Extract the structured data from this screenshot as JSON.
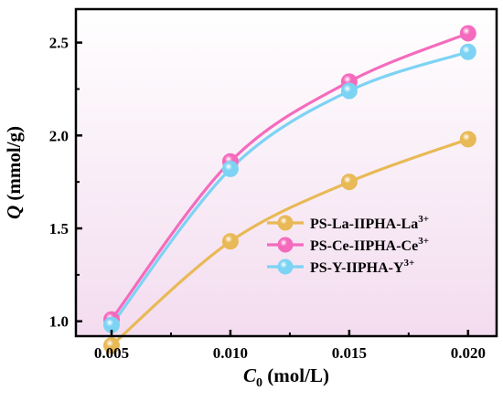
{
  "chart_data": {
    "type": "line",
    "title": "",
    "xlabel": {
      "main": "C",
      "sub": "0",
      "rest": " (mol/L)"
    },
    "ylabel": {
      "main": "Q",
      "rest": " (mmol/g)"
    },
    "x": [
      0.005,
      0.01,
      0.015,
      0.02
    ],
    "xticks": [
      "0.005",
      "0.010",
      "0.015",
      "0.020"
    ],
    "yticks": [
      "1.0",
      "1.5",
      "2.0",
      "2.5"
    ],
    "xlim": [
      0.0035,
      0.0212
    ],
    "ylim": [
      0.92,
      2.68
    ],
    "background_gradient": [
      "#ffffff",
      "#f3dcef"
    ],
    "legend_position": "center-right",
    "series": [
      {
        "name": "PS-La-IIPHA-La",
        "sup": "3+",
        "color": "#e8b956",
        "values": [
          0.87,
          1.43,
          1.75,
          1.98
        ]
      },
      {
        "name": "PS-Ce-IIPHA-Ce",
        "sup": "3+",
        "color": "#f46bbd",
        "values": [
          1.01,
          1.86,
          2.29,
          2.55
        ]
      },
      {
        "name": "PS-Y-IIPHA-Y",
        "sup": "3+",
        "color": "#7dd3f4",
        "values": [
          0.98,
          1.82,
          2.24,
          2.45
        ]
      }
    ]
  }
}
